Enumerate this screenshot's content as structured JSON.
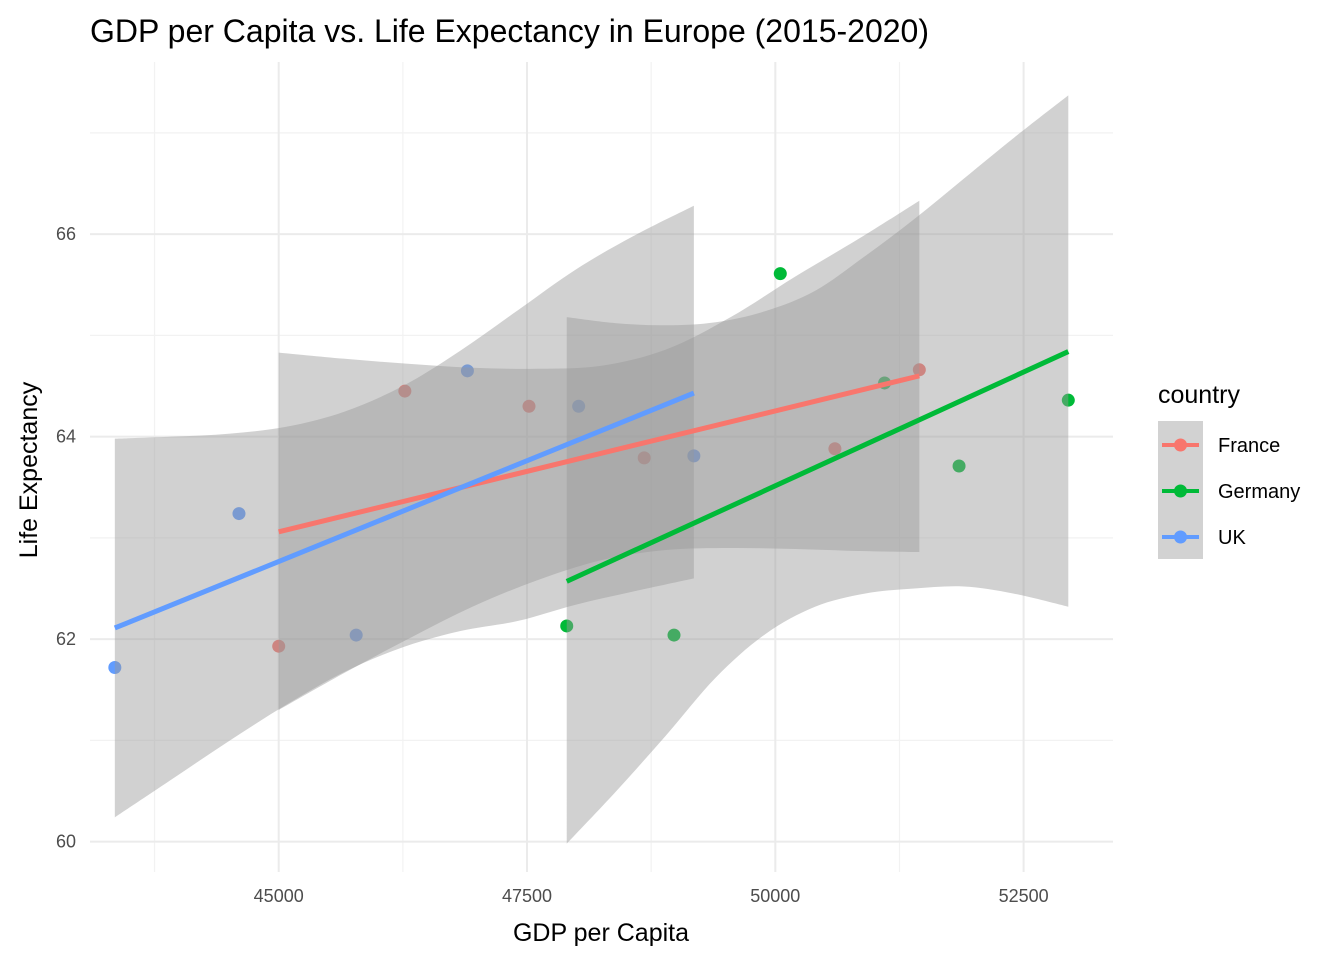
{
  "chart_data": {
    "type": "scatter",
    "title": "GDP per Capita vs. Life Expectancy in Europe (2015-2020)",
    "xlabel": "GDP per Capita",
    "ylabel": "Life Expectancy",
    "xlim": [
      43100,
      53400
    ],
    "ylim": [
      59.7,
      67.7
    ],
    "x_ticks": [
      45000,
      47500,
      50000,
      52500
    ],
    "y_ticks": [
      60,
      62,
      64,
      66
    ],
    "grid": true,
    "legend": {
      "title": "country",
      "position": "right"
    },
    "series": [
      {
        "name": "France",
        "color": "#F8766D",
        "points": [
          {
            "x": 45000,
            "y": 61.93
          },
          {
            "x": 46270,
            "y": 64.45
          },
          {
            "x": 47520,
            "y": 64.3
          },
          {
            "x": 48680,
            "y": 63.79
          },
          {
            "x": 50600,
            "y": 63.88
          },
          {
            "x": 51450,
            "y": 64.66
          }
        ],
        "fit": [
          [
            45000,
            63.06
          ],
          [
            51450,
            64.6
          ]
        ],
        "band": {
          "x": [
            45000,
            45650,
            46300,
            46950,
            47600,
            48250,
            48900,
            49550,
            50200,
            50850,
            51450
          ],
          "upper": [
            64.83,
            64.77,
            64.72,
            64.68,
            64.67,
            64.7,
            64.86,
            65.18,
            65.58,
            65.96,
            66.33
          ],
          "lower": [
            61.3,
            61.66,
            62.0,
            62.32,
            62.58,
            62.78,
            62.88,
            62.9,
            62.89,
            62.87,
            62.86
          ]
        }
      },
      {
        "name": "Germany",
        "color": "#00BA38",
        "points": [
          {
            "x": 47900,
            "y": 62.13
          },
          {
            "x": 48980,
            "y": 62.04
          },
          {
            "x": 50050,
            "y": 65.61
          },
          {
            "x": 51100,
            "y": 64.53
          },
          {
            "x": 51850,
            "y": 63.71
          },
          {
            "x": 52950,
            "y": 64.36
          }
        ],
        "fit": [
          [
            47900,
            62.57
          ],
          [
            52950,
            64.84
          ]
        ],
        "band": {
          "x": [
            47900,
            48400,
            48900,
            49400,
            49900,
            50400,
            50900,
            51400,
            51900,
            52400,
            52950
          ],
          "upper": [
            65.18,
            65.12,
            65.1,
            65.13,
            65.24,
            65.44,
            65.78,
            66.15,
            66.55,
            66.95,
            67.37
          ],
          "lower": [
            59.98,
            60.5,
            61.05,
            61.62,
            62.05,
            62.32,
            62.45,
            62.5,
            62.52,
            62.45,
            62.32
          ]
        }
      },
      {
        "name": "UK",
        "color": "#619CFF",
        "points": [
          {
            "x": 43350,
            "y": 61.72
          },
          {
            "x": 44600,
            "y": 63.24
          },
          {
            "x": 45780,
            "y": 62.04
          },
          {
            "x": 46900,
            "y": 64.65
          },
          {
            "x": 48020,
            "y": 64.3
          },
          {
            "x": 49180,
            "y": 63.81
          }
        ],
        "fit": [
          [
            43350,
            62.11
          ],
          [
            49180,
            64.43
          ]
        ],
        "band": {
          "x": [
            43350,
            43930,
            44510,
            45090,
            45670,
            46250,
            46830,
            47410,
            47990,
            48570,
            49180
          ],
          "upper": [
            63.98,
            64.0,
            64.03,
            64.1,
            64.25,
            64.5,
            64.85,
            65.25,
            65.65,
            65.98,
            66.28
          ],
          "lower": [
            60.24,
            60.62,
            61.0,
            61.36,
            61.68,
            61.92,
            62.08,
            62.18,
            62.34,
            62.47,
            62.6
          ]
        }
      }
    ]
  }
}
